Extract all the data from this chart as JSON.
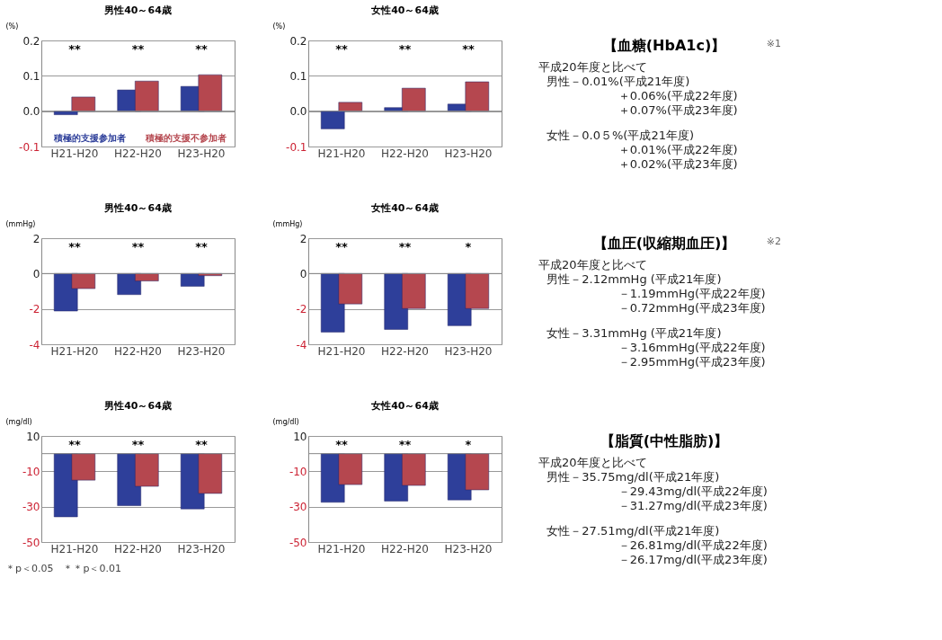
{
  "chart_data": [
    {
      "type": "bar",
      "title": "男性40～64歳",
      "ylabel": "(%)",
      "categories": [
        "H21-H20",
        "H22-H20",
        "H23-H20"
      ],
      "series": [
        {
          "name": "積極的支援参加者",
          "color": "#2e3f9a",
          "values": [
            -0.01,
            0.06,
            0.07
          ]
        },
        {
          "name": "積極的支援不参加者",
          "color": "#b5474f",
          "values": [
            0.04,
            0.085,
            0.103
          ]
        }
      ],
      "ylim": [
        -0.1,
        0.2
      ],
      "yticks": [
        {
          "value": -0.1,
          "label": "-0.1"
        },
        {
          "value": 0,
          "label": "0.0"
        },
        {
          "value": 0.1,
          "label": "0.1"
        },
        {
          "value": 0.2,
          "label": "0.2"
        }
      ],
      "grid": "y",
      "annotations": [
        "**",
        "**",
        "**"
      ]
    },
    {
      "type": "bar",
      "title": "女性40～64歳",
      "ylabel": "(%)",
      "categories": [
        "H21-H20",
        "H22-H20",
        "H23-H20"
      ],
      "series": [
        {
          "color": "#2e3f9a",
          "values": [
            -0.05,
            0.01,
            0.02
          ]
        },
        {
          "color": "#b5474f",
          "values": [
            0.025,
            0.065,
            0.083
          ]
        }
      ],
      "ylim": [
        -0.1,
        0.2
      ],
      "yticks": [
        {
          "value": -0.1,
          "label": "-0.1"
        },
        {
          "value": 0,
          "label": "0.0"
        },
        {
          "value": 0.1,
          "label": "0.1"
        },
        {
          "value": 0.2,
          "label": "0.2"
        }
      ],
      "grid": "y",
      "annotations": [
        "**",
        "**",
        "**"
      ]
    },
    {
      "type": "other",
      "title": "【血糖(HbA1c)】",
      "subtitle": "※1",
      "annotations": [
        "平成20年度と比べて",
        "男性－0.01%(平成21年度)",
        "＋0.06%(平成22年度)",
        "＋0.07%(平成23年度)",
        "女性－0.0５%(平成21年度)",
        "＋0.01%(平成22年度)",
        "＋0.02%(平成23年度)"
      ]
    },
    {
      "type": "bar",
      "title": "男性40～64歳",
      "ylabel": "(mmHg)",
      "categories": [
        "H21-H20",
        "H22-H20",
        "H23-H20"
      ],
      "series": [
        {
          "color": "#2e3f9a",
          "values": [
            -2.12,
            -1.19,
            -0.72
          ]
        },
        {
          "color": "#b5474f",
          "values": [
            -0.85,
            -0.42,
            -0.12
          ]
        }
      ],
      "ylim": [
        -4,
        2
      ],
      "yticks": [
        -4,
        -2,
        0,
        2
      ],
      "grid": "y",
      "annotations": [
        "**",
        "**",
        "**"
      ]
    },
    {
      "type": "bar",
      "title": "女性40～64歳",
      "ylabel": "(mmHg)",
      "categories": [
        "H21-H20",
        "H22-H20",
        "H23-H20"
      ],
      "series": [
        {
          "color": "#2e3f9a",
          "values": [
            -3.31,
            -3.16,
            -2.95
          ]
        },
        {
          "color": "#b5474f",
          "values": [
            -1.72,
            -1.98,
            -1.98
          ]
        }
      ],
      "ylim": [
        -4,
        2
      ],
      "yticks": [
        -4,
        -2,
        0,
        2
      ],
      "grid": "y",
      "annotations": [
        "**",
        "**",
        "*"
      ]
    },
    {
      "type": "other",
      "title": "【血圧(収縮期血圧)】",
      "subtitle": "※2",
      "annotations": [
        "平成20年度と比べて",
        "男性－2.12mmHg (平成21年度)",
        "－1.19mmHg(平成22年度)",
        "－0.72mmHg(平成23年度)",
        "女性－3.31mmHg (平成21年度)",
        "－3.16mmHg(平成22年度)",
        "－2.95mmHg(平成23年度)"
      ]
    },
    {
      "type": "bar",
      "title": "男性40～64歳",
      "ylabel": "(mg/dl)",
      "categories": [
        "H21-H20",
        "H22-H20",
        "H23-H20"
      ],
      "series": [
        {
          "color": "#2e3f9a",
          "values": [
            -35.75,
            -29.43,
            -31.27
          ]
        },
        {
          "color": "#b5474f",
          "values": [
            -15,
            -18.5,
            -22.5
          ]
        }
      ],
      "ylim": [
        -50,
        10
      ],
      "yticks": [
        -50,
        -30,
        -10,
        10
      ],
      "grid": "y",
      "annotations": [
        "**",
        "**",
        "**",
        "＊p＜0.05　＊＊p＜0.01"
      ]
    },
    {
      "type": "bar",
      "title": "女性40～64歳",
      "ylabel": "(mg/dl)",
      "categories": [
        "H21-H20",
        "H22-H20",
        "H23-H20"
      ],
      "series": [
        {
          "color": "#2e3f9a",
          "values": [
            -27.51,
            -26.81,
            -26.17
          ]
        },
        {
          "color": "#b5474f",
          "values": [
            -17.5,
            -18,
            -20.5
          ]
        }
      ],
      "ylim": [
        -50,
        10
      ],
      "yticks": [
        -50,
        -30,
        -10,
        10
      ],
      "grid": "y",
      "annotations": [
        "**",
        "**",
        "*"
      ]
    },
    {
      "type": "other",
      "title": "【脂質(中性脂肪)】",
      "annotations": [
        "平成20年度と比べて",
        "男性－35.75mg/dl(平成21年度)",
        "－29.43mg/dl(平成22年度)",
        "－31.27mg/dl(平成23年度)",
        "女性－27.51mg/dl(平成21年度)",
        "－26.81mg/dl(平成22年度)",
        "－26.17mg/dl(平成23年度)"
      ]
    }
  ]
}
